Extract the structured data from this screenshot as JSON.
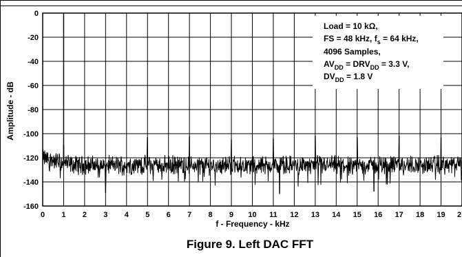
{
  "caption": "Figure 9. Left DAC FFT",
  "chart_data": {
    "type": "line",
    "title": "",
    "xlabel": "f - Frequency - kHz",
    "ylabel": "Amplitude - dB",
    "xlim": [
      0,
      20
    ],
    "ylim": [
      -160,
      0
    ],
    "x_ticks": [
      "0",
      "1",
      "2",
      "3",
      "4",
      "5",
      "6",
      "7",
      "8",
      "9",
      "10",
      "11",
      "12",
      "13",
      "14",
      "15",
      "16",
      "17",
      "18",
      "19",
      "2"
    ],
    "y_ticks": [
      "0",
      "-20",
      "-40",
      "-60",
      "-80",
      "-100",
      "-120",
      "-140",
      "-160"
    ],
    "grid": true,
    "annotation_lines": [
      "Load = 10 kΩ,",
      "FS = 48 kHz, f",
      "s",
      " = 64 kHz,",
      "4096 Samples,",
      "AV",
      "DD",
      " = DRV",
      "DD",
      " = 3.3 V,",
      "DV",
      "DD",
      " = 1.8 V"
    ],
    "noise_floor_db": -126,
    "noise_range_db": [
      -150,
      -112
    ],
    "spurs": [
      {
        "x": 1.0,
        "y": 0
      },
      {
        "x": 1.0,
        "y": -109
      },
      {
        "x": 3.0,
        "y": -149
      },
      {
        "x": 5.0,
        "y": -103
      },
      {
        "x": 7.0,
        "y": -102
      },
      {
        "x": 9.0,
        "y": -105
      },
      {
        "x": 11.0,
        "y": -104
      },
      {
        "x": 11.3,
        "y": -150
      },
      {
        "x": 13.0,
        "y": -102
      },
      {
        "x": 15.0,
        "y": -103
      },
      {
        "x": 15.8,
        "y": -148
      },
      {
        "x": 17.0,
        "y": -102
      },
      {
        "x": 19.0,
        "y": -103
      }
    ]
  }
}
